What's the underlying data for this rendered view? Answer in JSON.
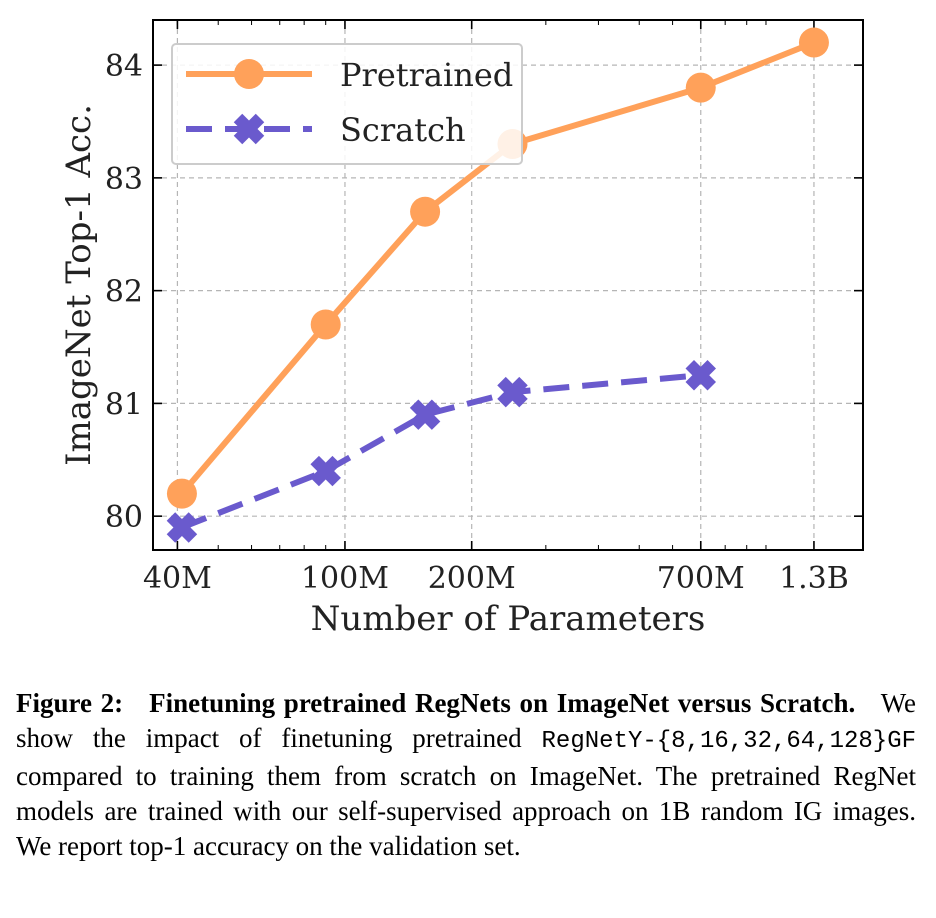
{
  "chart_data": {
    "type": "line",
    "xlabel": "Number of Parameters",
    "ylabel": "ImageNet Top-1 Acc.",
    "x_scale": "log",
    "xlim": [
      35000000,
      1700000000
    ],
    "ylim": [
      79.7,
      84.4
    ],
    "x_ticks": [
      {
        "value": 40000000,
        "label": "40M"
      },
      {
        "value": 100000000,
        "label": "100M"
      },
      {
        "value": 200000000,
        "label": "200M"
      },
      {
        "value": 700000000,
        "label": "700M"
      },
      {
        "value": 1300000000,
        "label": "1.3B"
      }
    ],
    "y_ticks": [
      {
        "value": 80,
        "label": "80"
      },
      {
        "value": 81,
        "label": "81"
      },
      {
        "value": 82,
        "label": "82"
      },
      {
        "value": 83,
        "label": "83"
      },
      {
        "value": 84,
        "label": "84"
      }
    ],
    "grid": true,
    "legend_position": "top-left",
    "series": [
      {
        "name": "Pretrained",
        "color": "#ffa15a",
        "marker": "circle",
        "line": "solid",
        "points": [
          {
            "x": 41000000,
            "y": 80.2
          },
          {
            "x": 90000000,
            "y": 81.7
          },
          {
            "x": 155000000,
            "y": 82.7
          },
          {
            "x": 250000000,
            "y": 83.3
          },
          {
            "x": 700000000,
            "y": 83.8
          },
          {
            "x": 1300000000,
            "y": 84.2
          }
        ]
      },
      {
        "name": "Scratch",
        "color": "#6a5acd",
        "marker": "x",
        "line": "dashed",
        "points": [
          {
            "x": 41000000,
            "y": 79.9
          },
          {
            "x": 90000000,
            "y": 80.4
          },
          {
            "x": 155000000,
            "y": 80.9
          },
          {
            "x": 250000000,
            "y": 81.1
          },
          {
            "x": 700000000,
            "y": 81.25
          }
        ]
      }
    ]
  },
  "caption": {
    "label": "Figure 2:",
    "title": "Finetuning pretrained RegNets on ImageNet versus Scratch.",
    "text_1": "We show the impact of finetuning pretrained",
    "code": "RegNetY-{8,16,32,64,128}GF",
    "text_2": "compared to training them from scratch on ImageNet. The pretrained RegNet models are trained with our self-supervised approach on 1B random IG images. We report top-1 accuracy on the validation set."
  }
}
